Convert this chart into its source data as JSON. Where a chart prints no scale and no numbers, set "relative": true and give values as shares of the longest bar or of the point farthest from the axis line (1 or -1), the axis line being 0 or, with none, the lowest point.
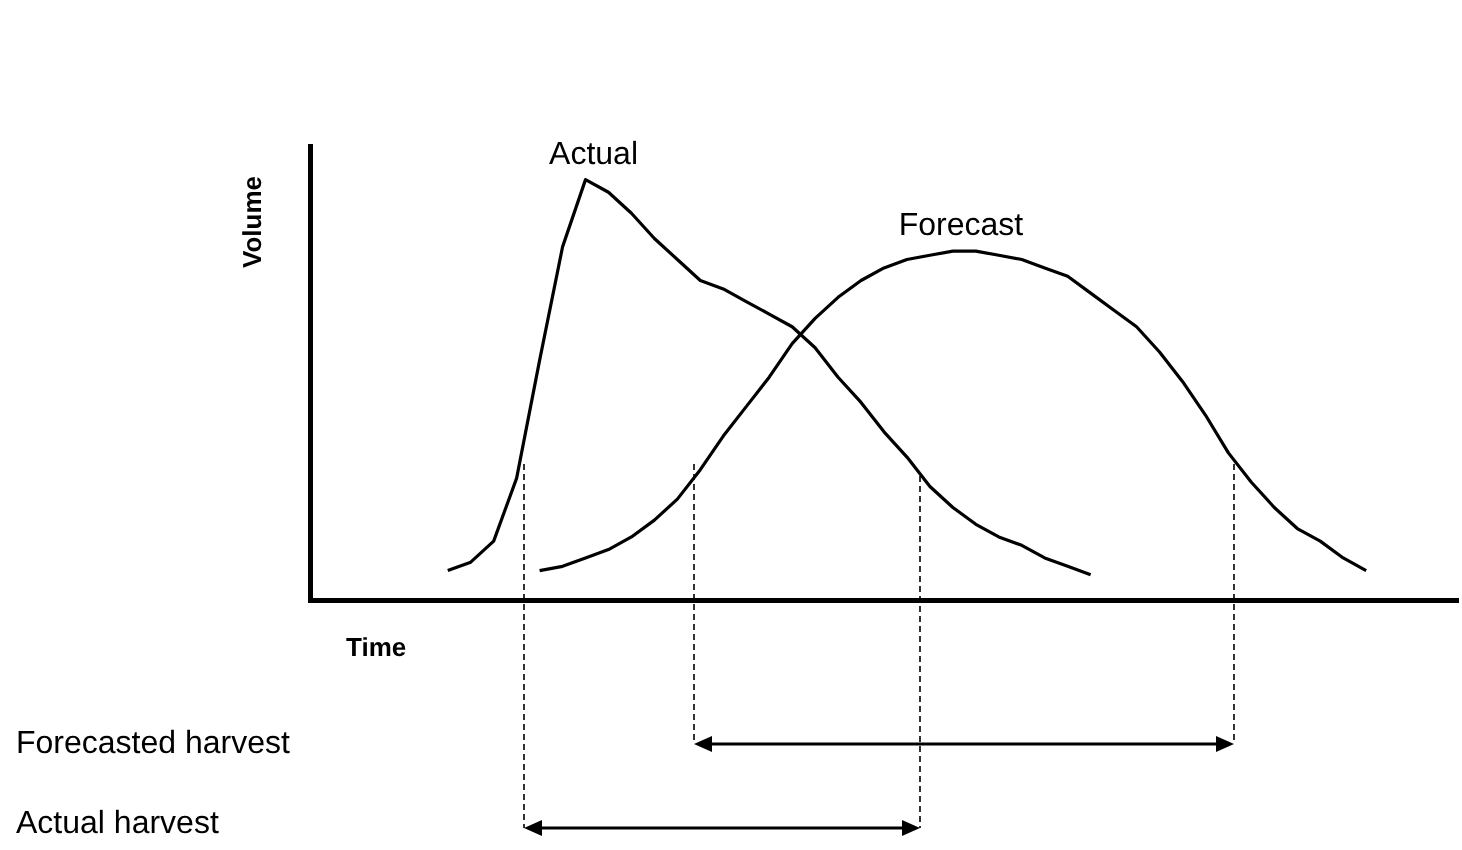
{
  "chart_data": {
    "type": "line",
    "relative": true,
    "xlabel": "Time",
    "ylabel": "Volume",
    "legend": false,
    "grid": false,
    "marker": "none",
    "categories": [
      null,
      null,
      null,
      null,
      null,
      null,
      null,
      null,
      null,
      null,
      null,
      null,
      null,
      null,
      null,
      null,
      null,
      null,
      null,
      null,
      null,
      null,
      null,
      null,
      null,
      null,
      null,
      null,
      null,
      null,
      null,
      null,
      null,
      null,
      null,
      null,
      null,
      null,
      null,
      null,
      null,
      null,
      null,
      null,
      null,
      null,
      null,
      null,
      null,
      null,
      null
    ],
    "series": [
      {
        "name": "Actual",
        "color": "#000000",
        "values": [
          null,
          null,
          null,
          null,
          null,
          null,
          0.07,
          0.09,
          0.14,
          0.29,
          0.57,
          0.84,
          1.0,
          0.97,
          0.92,
          0.86,
          0.81,
          0.76,
          0.74,
          0.71,
          0.68,
          0.65,
          0.6,
          0.53,
          0.47,
          0.4,
          0.34,
          0.27,
          0.22,
          0.18,
          0.15,
          0.13,
          0.1,
          0.08,
          0.06,
          null,
          null,
          null,
          null,
          null,
          null,
          null,
          null,
          null,
          null,
          null,
          null,
          null,
          null,
          null,
          null
        ]
      },
      {
        "name": "Forecast",
        "color": "#000000",
        "values": [
          null,
          null,
          null,
          null,
          null,
          null,
          null,
          null,
          null,
          null,
          0.07,
          0.08,
          0.1,
          0.12,
          0.15,
          0.19,
          0.24,
          0.31,
          0.39,
          0.46,
          0.53,
          0.61,
          0.67,
          0.72,
          0.76,
          0.79,
          0.81,
          0.82,
          0.83,
          0.83,
          0.82,
          0.81,
          0.79,
          0.77,
          0.73,
          0.69,
          0.65,
          0.59,
          0.52,
          0.44,
          0.35,
          0.28,
          0.22,
          0.17,
          0.14,
          0.1,
          0.07,
          null,
          null,
          null,
          null
        ]
      }
    ],
    "annotations": [
      "Forecasted harvest",
      "Actual harvest"
    ]
  }
}
